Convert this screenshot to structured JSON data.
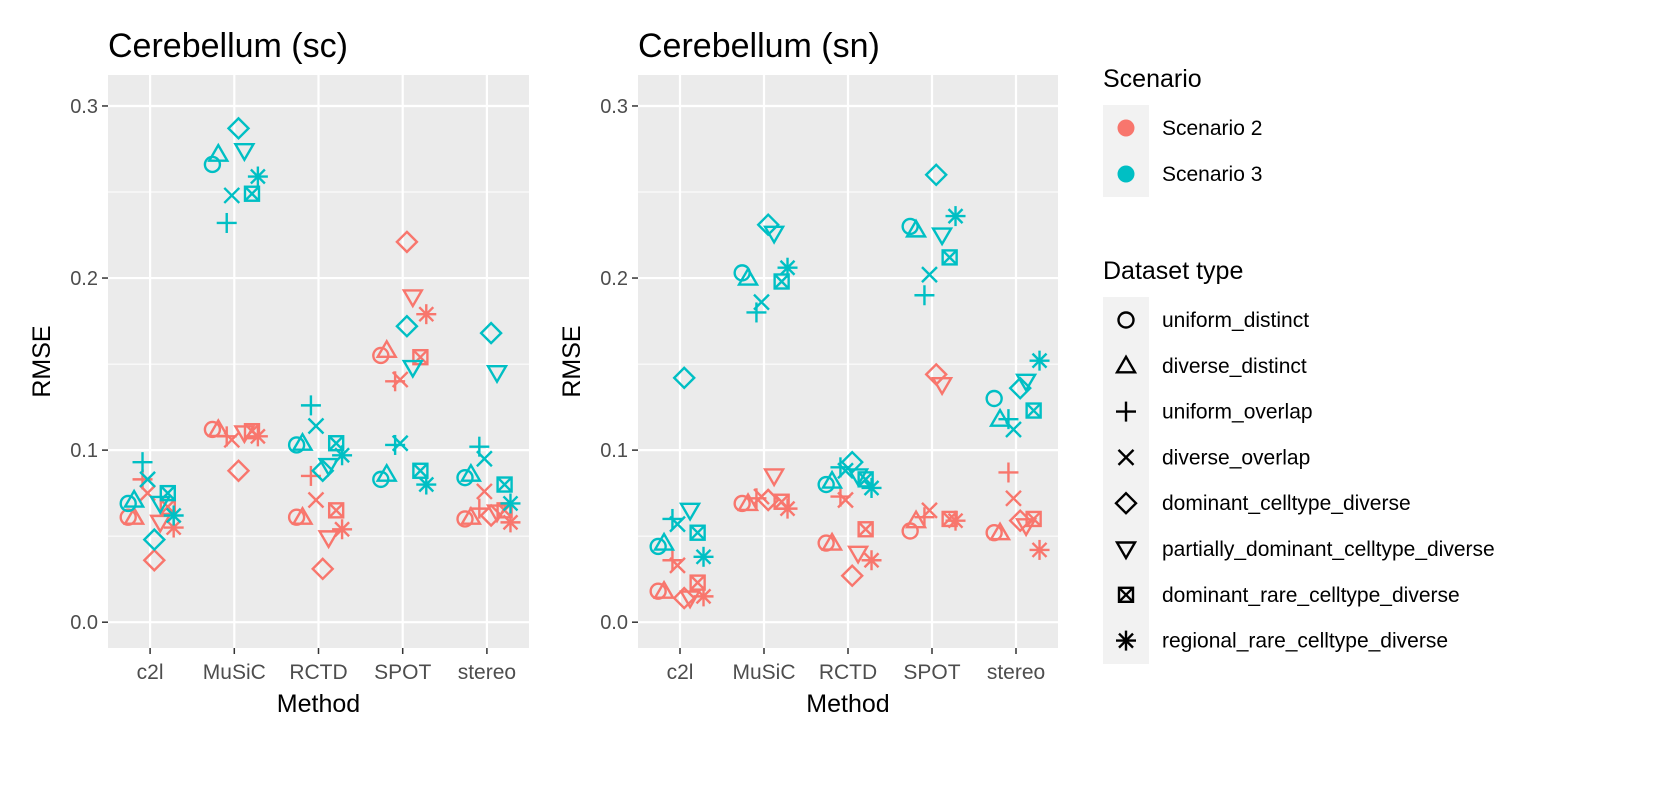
{
  "legend": {
    "scenario": {
      "title": "Scenario",
      "items": [
        {
          "label": "Scenario 2",
          "color": "#F8766D"
        },
        {
          "label": "Scenario 3",
          "color": "#00BFC4"
        }
      ]
    },
    "dataset": {
      "title": "Dataset type",
      "items": [
        {
          "label": "uniform_distinct",
          "shape": "circle-icon"
        },
        {
          "label": "diverse_distinct",
          "shape": "triangle-icon"
        },
        {
          "label": "uniform_overlap",
          "shape": "plus-icon"
        },
        {
          "label": "diverse_overlap",
          "shape": "cross-icon"
        },
        {
          "label": "dominant_celltype_diverse",
          "shape": "diamond-icon"
        },
        {
          "label": "partially_dominant_celltype_diverse",
          "shape": "triangle-down-icon"
        },
        {
          "label": "dominant_rare_celltype_diverse",
          "shape": "square-cross-icon"
        },
        {
          "label": "regional_rare_celltype_diverse",
          "shape": "asterisk-icon"
        }
      ]
    }
  },
  "chart_data": [
    {
      "type": "scatter",
      "title": "Cerebellum (sc)",
      "xlabel": "Method",
      "ylabel": "RMSE",
      "categories": [
        "c2l",
        "MuSiC",
        "RCTD",
        "SPOT",
        "stereo"
      ],
      "ylim": [
        -0.015,
        0.318
      ],
      "yticks": [
        "0.0",
        "0.1",
        "0.2",
        "0.3"
      ],
      "grid": true,
      "series": [
        {
          "scenario": "Scenario 2",
          "values": [
            [
              0.061,
              0.061,
              0.083,
              0.075,
              0.036,
              0.058,
              0.067,
              0.055
            ],
            [
              0.112,
              0.112,
              0.108,
              0.106,
              0.088,
              0.11,
              0.111,
              0.108
            ],
            [
              0.061,
              0.061,
              0.085,
              0.071,
              0.031,
              0.049,
              0.065,
              0.054
            ],
            [
              0.155,
              0.158,
              0.14,
              0.141,
              0.221,
              0.189,
              0.154,
              0.179
            ],
            [
              0.06,
              0.061,
              0.066,
              0.076,
              0.062,
              0.064,
              0.065,
              0.058
            ]
          ]
        },
        {
          "scenario": "Scenario 3",
          "values": [
            [
              0.069,
              0.071,
              0.093,
              0.083,
              0.048,
              0.069,
              0.075,
              0.062
            ],
            [
              0.266,
              0.272,
              0.232,
              0.248,
              0.287,
              0.274,
              0.249,
              0.259
            ],
            [
              0.103,
              0.104,
              0.126,
              0.114,
              0.088,
              0.091,
              0.104,
              0.097
            ],
            [
              0.083,
              0.086,
              0.103,
              0.104,
              0.172,
              0.148,
              0.088,
              0.08
            ],
            [
              0.084,
              0.086,
              0.102,
              0.095,
              0.168,
              0.145,
              0.08,
              0.069
            ]
          ]
        }
      ]
    },
    {
      "type": "scatter",
      "title": "Cerebellum (sn)",
      "xlabel": "Method",
      "ylabel": "RMSE",
      "categories": [
        "c2l",
        "MuSiC",
        "RCTD",
        "SPOT",
        "stereo"
      ],
      "ylim": [
        -0.015,
        0.318
      ],
      "yticks": [
        "0.0",
        "0.1",
        "0.2",
        "0.3"
      ],
      "grid": true,
      "series": [
        {
          "scenario": "Scenario 2",
          "values": [
            [
              0.018,
              0.018,
              0.036,
              0.033,
              0.014,
              0.014,
              0.023,
              0.015
            ],
            [
              0.069,
              0.069,
              0.072,
              0.073,
              0.071,
              0.085,
              0.07,
              0.066
            ],
            [
              0.046,
              0.046,
              0.073,
              0.071,
              0.027,
              0.04,
              0.054,
              0.036
            ],
            [
              0.053,
              0.059,
              0.061,
              0.065,
              0.144,
              0.138,
              0.06,
              0.059
            ],
            [
              0.052,
              0.052,
              0.087,
              0.072,
              0.059,
              0.056,
              0.06,
              0.042
            ]
          ]
        },
        {
          "scenario": "Scenario 3",
          "values": [
            [
              0.044,
              0.046,
              0.06,
              0.057,
              0.142,
              0.065,
              0.052,
              0.038
            ],
            [
              0.203,
              0.2,
              0.18,
              0.186,
              0.231,
              0.226,
              0.198,
              0.206
            ],
            [
              0.08,
              0.082,
              0.09,
              0.088,
              0.093,
              0.085,
              0.083,
              0.078
            ],
            [
              0.23,
              0.228,
              0.19,
              0.202,
              0.26,
              0.225,
              0.212,
              0.236
            ],
            [
              0.13,
              0.118,
              0.118,
              0.112,
              0.136,
              0.14,
              0.123,
              0.152
            ]
          ]
        }
      ]
    }
  ]
}
